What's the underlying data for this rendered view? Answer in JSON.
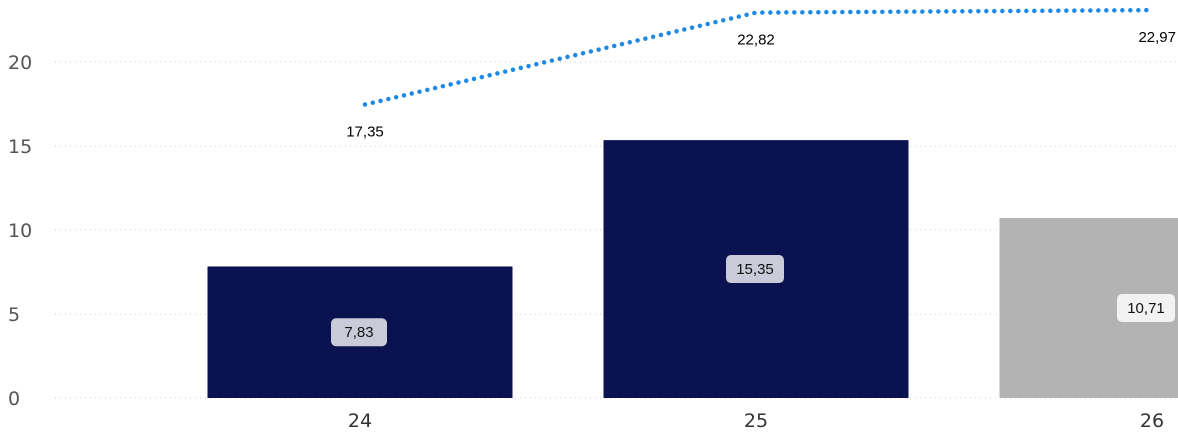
{
  "chart_data": {
    "type": "bar",
    "categories": [
      "24",
      "25",
      "26"
    ],
    "series": [
      {
        "kind": "bar",
        "values": [
          7.83,
          15.35,
          10.71
        ],
        "value_labels": [
          "7,83",
          "15,35",
          "10,71"
        ],
        "colors": [
          "#0b1250",
          "#0b1250",
          "#b3b3b3"
        ]
      },
      {
        "kind": "line",
        "style": "dotted",
        "color": "#1e88e5",
        "values": [
          17.35,
          22.82,
          22.97
        ],
        "value_labels": [
          "17,35",
          "22,82",
          "22,97"
        ]
      }
    ],
    "yticks": [
      "0",
      "5",
      "10",
      "15",
      "20"
    ],
    "ylim": [
      0,
      23.5
    ],
    "grid": true,
    "title": "",
    "xlabel": "",
    "ylabel": ""
  }
}
